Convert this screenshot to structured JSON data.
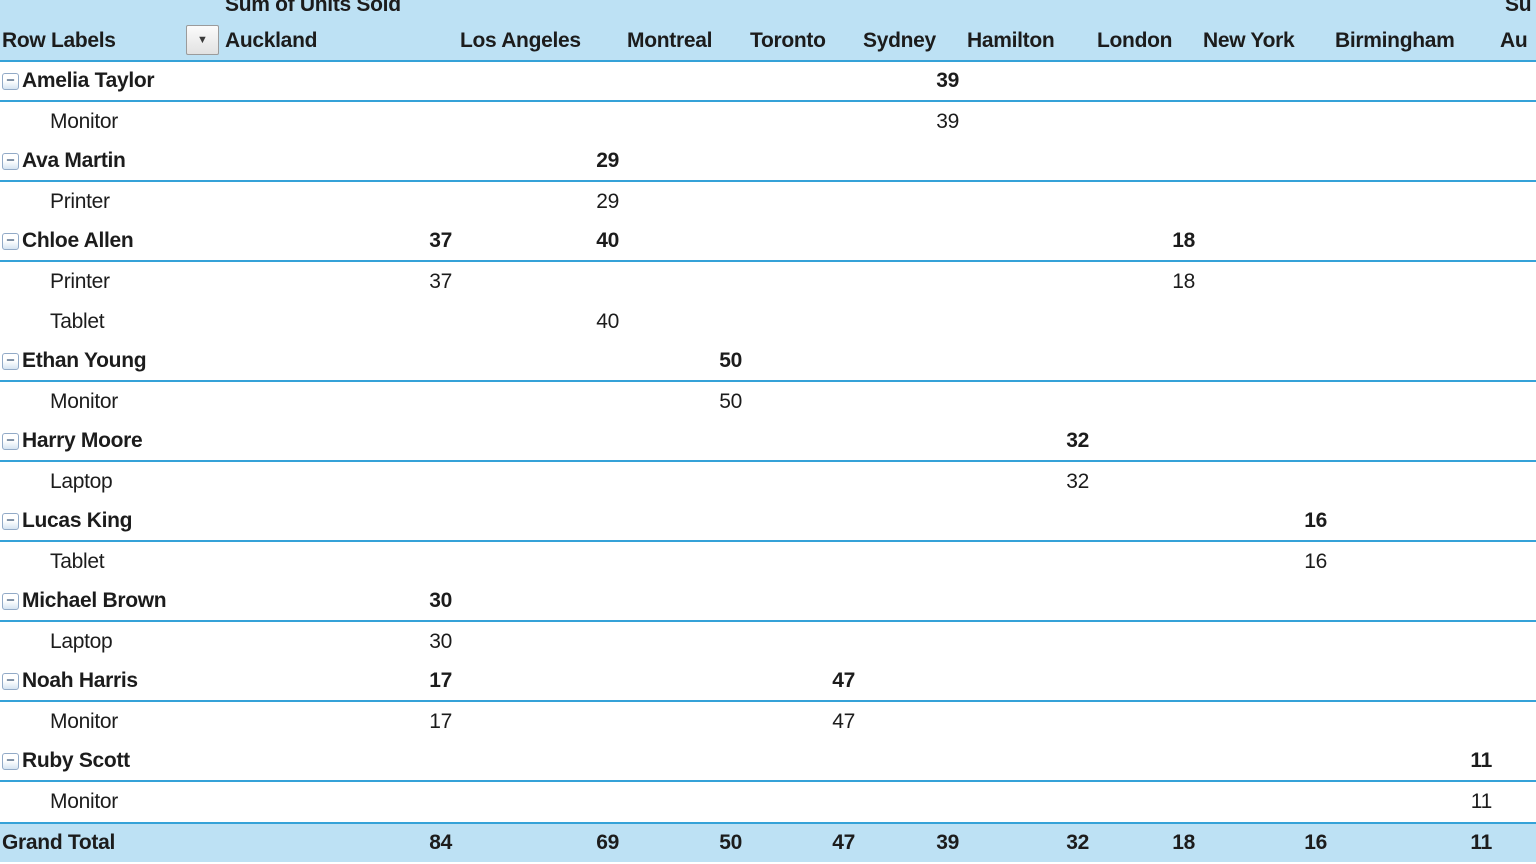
{
  "app": "excel-pivot-table",
  "title_row": {
    "left_label": "Sum of Units Sold",
    "right_label_partial": "Su"
  },
  "header": {
    "row_labels_label": "Row Labels",
    "columns": [
      "Auckland",
      "Los Angeles",
      "Montreal",
      "Toronto",
      "Sydney",
      "Hamilton",
      "London",
      "New York",
      "Birmingham",
      "Au"
    ]
  },
  "icons": {
    "dropdown_arrow": "▼",
    "collapse_minus": "−"
  },
  "rows": [
    {
      "label": "Amelia Taylor",
      "type": "group",
      "values": [
        "",
        "",
        "",
        "",
        "39",
        "",
        "",
        "",
        "",
        ""
      ]
    },
    {
      "label": "Monitor",
      "type": "item",
      "values": [
        "",
        "",
        "",
        "",
        "39",
        "",
        "",
        "",
        "",
        ""
      ]
    },
    {
      "label": "Ava Martin",
      "type": "group",
      "values": [
        "",
        "29",
        "",
        "",
        "",
        "",
        "",
        "",
        "",
        ""
      ]
    },
    {
      "label": "Printer",
      "type": "item",
      "values": [
        "",
        "29",
        "",
        "",
        "",
        "",
        "",
        "",
        "",
        ""
      ]
    },
    {
      "label": "Chloe Allen",
      "type": "group",
      "values": [
        "37",
        "40",
        "",
        "",
        "",
        "",
        "18",
        "",
        "",
        ""
      ]
    },
    {
      "label": "Printer",
      "type": "item",
      "values": [
        "37",
        "",
        "",
        "",
        "",
        "",
        "18",
        "",
        "",
        ""
      ]
    },
    {
      "label": "Tablet",
      "type": "item",
      "values": [
        "",
        "40",
        "",
        "",
        "",
        "",
        "",
        "",
        "",
        ""
      ]
    },
    {
      "label": "Ethan Young",
      "type": "group",
      "values": [
        "",
        "",
        "50",
        "",
        "",
        "",
        "",
        "",
        "",
        ""
      ]
    },
    {
      "label": "Monitor",
      "type": "item",
      "values": [
        "",
        "",
        "50",
        "",
        "",
        "",
        "",
        "",
        "",
        ""
      ]
    },
    {
      "label": "Harry Moore",
      "type": "group",
      "values": [
        "",
        "",
        "",
        "",
        "",
        "32",
        "",
        "",
        "",
        ""
      ]
    },
    {
      "label": "Laptop",
      "type": "item",
      "values": [
        "",
        "",
        "",
        "",
        "",
        "32",
        "",
        "",
        "",
        ""
      ]
    },
    {
      "label": "Lucas King",
      "type": "group",
      "values": [
        "",
        "",
        "",
        "",
        "",
        "",
        "",
        "16",
        "",
        ""
      ]
    },
    {
      "label": "Tablet",
      "type": "item",
      "values": [
        "",
        "",
        "",
        "",
        "",
        "",
        "",
        "16",
        "",
        ""
      ]
    },
    {
      "label": "Michael Brown",
      "type": "group",
      "values": [
        "30",
        "",
        "",
        "",
        "",
        "",
        "",
        "",
        "",
        ""
      ]
    },
    {
      "label": "Laptop",
      "type": "item",
      "values": [
        "30",
        "",
        "",
        "",
        "",
        "",
        "",
        "",
        "",
        ""
      ]
    },
    {
      "label": "Noah Harris",
      "type": "group",
      "values": [
        "17",
        "",
        "",
        "47",
        "",
        "",
        "",
        "",
        "",
        ""
      ]
    },
    {
      "label": "Monitor",
      "type": "item",
      "values": [
        "17",
        "",
        "",
        "47",
        "",
        "",
        "",
        "",
        "",
        ""
      ]
    },
    {
      "label": "Ruby Scott",
      "type": "group",
      "values": [
        "",
        "",
        "",
        "",
        "",
        "",
        "",
        "",
        "11",
        ""
      ]
    },
    {
      "label": "Monitor",
      "type": "item",
      "values": [
        "",
        "",
        "",
        "",
        "",
        "",
        "",
        "",
        "11",
        ""
      ]
    },
    {
      "label": "Grand Total",
      "type": "grand_total",
      "values": [
        "84",
        "69",
        "50",
        "47",
        "39",
        "32",
        "18",
        "16",
        "11",
        ""
      ]
    }
  ],
  "colors": {
    "band_bg": "#BDE1F4",
    "grid_line": "#35A2D8",
    "text": "#1C1C1C"
  }
}
